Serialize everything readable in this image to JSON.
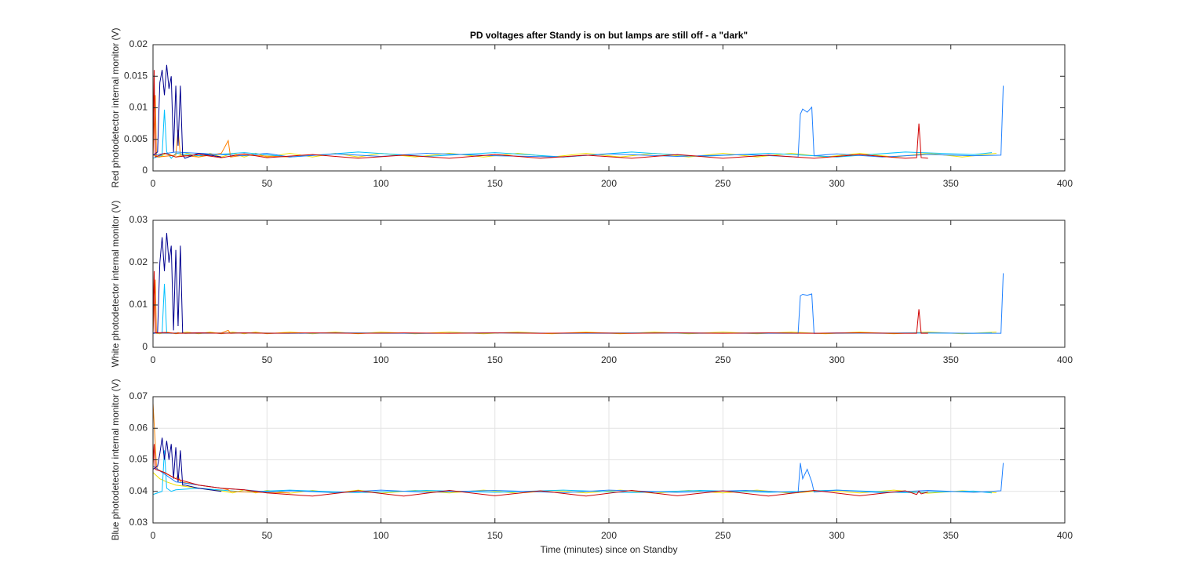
{
  "chart_data": [
    {
      "type": "line",
      "title": "PD voltages after Standy is on but lamps are still off - a \"dark\"",
      "y_label": "Red photodetector internal monitor (V)",
      "xlim": [
        0,
        400
      ],
      "xticks": [
        0,
        50,
        100,
        150,
        200,
        250,
        300,
        350,
        400
      ],
      "ylim": [
        0,
        0.02
      ],
      "yticks": [
        0,
        0.005,
        0.01,
        0.015,
        0.02
      ],
      "grid": false,
      "series": [
        {
          "color": "#f0e000",
          "x": [
            0,
            3,
            6,
            10,
            15,
            20,
            25,
            30,
            35,
            40,
            45,
            50,
            60,
            70,
            80,
            90,
            100,
            115,
            130,
            145,
            160,
            175,
            190,
            205,
            220,
            235,
            250,
            265,
            280,
            295,
            310,
            325,
            340,
            355,
            370
          ],
          "values": [
            0.0025,
            0.0022,
            0.0028,
            0.0022,
            0.0028,
            0.0022,
            0.0028,
            0.0022,
            0.0028,
            0.0022,
            0.0028,
            0.0022,
            0.0028,
            0.0022,
            0.0028,
            0.0022,
            0.0028,
            0.0022,
            0.0028,
            0.0022,
            0.0028,
            0.0022,
            0.0028,
            0.0022,
            0.0028,
            0.0022,
            0.0028,
            0.0022,
            0.0028,
            0.0022,
            0.0028,
            0.0022,
            0.0028,
            0.0022,
            0.0028
          ]
        },
        {
          "color": "#00c0ff",
          "x": [
            0,
            4,
            5,
            6,
            8,
            10,
            20,
            40,
            60,
            90,
            120,
            150,
            180,
            210,
            240,
            270,
            300,
            330,
            360,
            368
          ],
          "values": [
            0.002,
            0.0025,
            0.0097,
            0.003,
            0.002,
            0.0028,
            0.0024,
            0.0029,
            0.0022,
            0.003,
            0.0023,
            0.0029,
            0.0022,
            0.003,
            0.0023,
            0.0028,
            0.0022,
            0.003,
            0.0026,
            0.0029
          ]
        },
        {
          "color": "#ff8000",
          "x": [
            0,
            1,
            1.5,
            2,
            10,
            11,
            12,
            20,
            30,
            33,
            34,
            40,
            60
          ],
          "values": [
            0.0025,
            0.012,
            0.0025,
            0.0022,
            0.0025,
            0.0065,
            0.0025,
            0.0022,
            0.0028,
            0.0048,
            0.0022,
            0.0025,
            0.0022
          ]
        },
        {
          "color": "#1e80ff",
          "x": [
            0,
            10,
            20,
            30,
            40,
            50,
            60,
            80,
            100,
            120,
            150,
            180,
            200,
            230,
            260,
            283,
            284,
            285,
            287,
            289,
            290,
            300,
            320,
            340,
            360,
            372,
            373
          ],
          "values": [
            0.0025,
            0.003,
            0.0028,
            0.0026,
            0.0024,
            0.0028,
            0.0022,
            0.0027,
            0.0023,
            0.0028,
            0.0024,
            0.0022,
            0.0027,
            0.0023,
            0.0026,
            0.0022,
            0.009,
            0.0098,
            0.0093,
            0.0101,
            0.0024,
            0.0027,
            0.0022,
            0.0026,
            0.0024,
            0.0025,
            0.0135
          ]
        },
        {
          "color": "#00008f",
          "x": [
            0,
            2,
            3,
            4,
            5,
            6,
            7,
            8,
            9,
            10,
            11,
            12,
            13,
            14,
            20,
            30
          ],
          "values": [
            0.0025,
            0.003,
            0.014,
            0.016,
            0.012,
            0.0168,
            0.013,
            0.015,
            0.003,
            0.0135,
            0.004,
            0.0135,
            0.0025,
            0.002,
            0.0028,
            0.0022
          ]
        },
        {
          "color": "#d00000",
          "x": [
            0,
            0.5,
            1,
            5,
            10,
            20,
            30,
            40,
            50,
            70,
            90,
            110,
            130,
            150,
            170,
            190,
            210,
            230,
            250,
            270,
            290,
            310,
            330,
            335,
            336,
            337,
            340
          ],
          "values": [
            0.002,
            0.016,
            0.0022,
            0.0028,
            0.0022,
            0.0026,
            0.0021,
            0.0027,
            0.0021,
            0.0026,
            0.002,
            0.0025,
            0.002,
            0.0026,
            0.002,
            0.0025,
            0.002,
            0.0026,
            0.002,
            0.0025,
            0.002,
            0.0026,
            0.002,
            0.0021,
            0.0075,
            0.0021,
            0.002
          ]
        }
      ]
    },
    {
      "type": "line",
      "y_label": "White photodetector internal monitor (V)",
      "xlim": [
        0,
        400
      ],
      "xticks": [
        0,
        50,
        100,
        150,
        200,
        250,
        300,
        350,
        400
      ],
      "ylim": [
        0,
        0.03
      ],
      "yticks": [
        0,
        0.01,
        0.02,
        0.03
      ],
      "grid": false,
      "series": [
        {
          "color": "#f0e000",
          "x": [
            0,
            3,
            6,
            10,
            15,
            20,
            25,
            30,
            35,
            40,
            45,
            50,
            60,
            70,
            80,
            90,
            100,
            115,
            130,
            145,
            160,
            175,
            190,
            205,
            220,
            235,
            250,
            265,
            280,
            295,
            310,
            325,
            340,
            355,
            370
          ],
          "values": [
            0.0034,
            0.0032,
            0.0036,
            0.0032,
            0.0036,
            0.0032,
            0.0036,
            0.0032,
            0.0036,
            0.0032,
            0.0036,
            0.0032,
            0.0036,
            0.0032,
            0.0036,
            0.0032,
            0.0036,
            0.0032,
            0.0036,
            0.0032,
            0.0036,
            0.0032,
            0.0036,
            0.0032,
            0.0036,
            0.0032,
            0.0036,
            0.0032,
            0.0036,
            0.0032,
            0.0036,
            0.0032,
            0.0036,
            0.0032,
            0.0036
          ]
        },
        {
          "color": "#00c0ff",
          "x": [
            0,
            4,
            5,
            6,
            8,
            10,
            20,
            40,
            60,
            90,
            120,
            150,
            180,
            210,
            240,
            270,
            300,
            330,
            360,
            368
          ],
          "values": [
            0.0033,
            0.0034,
            0.015,
            0.0034,
            0.0033,
            0.0034,
            0.0033,
            0.0034,
            0.0033,
            0.0034,
            0.0033,
            0.0034,
            0.0033,
            0.0034,
            0.0033,
            0.0034,
            0.0033,
            0.0034,
            0.0033,
            0.0034
          ]
        },
        {
          "color": "#ff8000",
          "x": [
            0,
            1,
            1.5,
            2,
            10,
            11,
            12,
            20,
            30,
            33,
            34,
            40,
            60
          ],
          "values": [
            0.0033,
            0.016,
            0.0033,
            0.0033,
            0.0033,
            0.0035,
            0.0033,
            0.0033,
            0.0034,
            0.004,
            0.0033,
            0.0034,
            0.0033
          ]
        },
        {
          "color": "#1e80ff",
          "x": [
            0,
            10,
            20,
            30,
            40,
            50,
            60,
            80,
            100,
            120,
            150,
            180,
            200,
            230,
            260,
            283,
            284,
            285,
            287,
            289,
            290,
            300,
            320,
            340,
            360,
            372,
            373
          ],
          "values": [
            0.0034,
            0.0033,
            0.0034,
            0.0033,
            0.0034,
            0.0033,
            0.0033,
            0.0034,
            0.0033,
            0.0033,
            0.0034,
            0.0033,
            0.0033,
            0.0034,
            0.0033,
            0.0033,
            0.0122,
            0.0125,
            0.0123,
            0.0126,
            0.0033,
            0.0034,
            0.0033,
            0.0034,
            0.0033,
            0.0033,
            0.0175
          ]
        },
        {
          "color": "#00008f",
          "x": [
            0,
            2,
            3,
            4,
            5,
            6,
            7,
            8,
            9,
            10,
            11,
            12,
            13,
            14,
            20,
            30
          ],
          "values": [
            0.0033,
            0.0035,
            0.02,
            0.026,
            0.018,
            0.027,
            0.02,
            0.024,
            0.004,
            0.023,
            0.005,
            0.024,
            0.0034,
            0.0033,
            0.0034,
            0.0033
          ]
        },
        {
          "color": "#d00000",
          "x": [
            0,
            0.5,
            1,
            5,
            10,
            20,
            30,
            40,
            50,
            70,
            90,
            110,
            130,
            150,
            170,
            190,
            210,
            230,
            250,
            270,
            290,
            310,
            330,
            335,
            336,
            337,
            340
          ],
          "values": [
            0.0033,
            0.018,
            0.0034,
            0.0035,
            0.0033,
            0.0034,
            0.0033,
            0.0034,
            0.0033,
            0.0034,
            0.0033,
            0.0034,
            0.0033,
            0.0034,
            0.0033,
            0.0034,
            0.0033,
            0.0034,
            0.0033,
            0.0034,
            0.0033,
            0.0034,
            0.0033,
            0.0033,
            0.009,
            0.0033,
            0.0033
          ]
        }
      ]
    },
    {
      "type": "line",
      "y_label": "Blue photodetector internal monitor (V)",
      "x_label": "Time (minutes) since on Standby",
      "xlim": [
        0,
        400
      ],
      "xticks": [
        0,
        50,
        100,
        150,
        200,
        250,
        300,
        350,
        400
      ],
      "ylim": [
        0.03,
        0.07
      ],
      "yticks": [
        0.03,
        0.04,
        0.05,
        0.06,
        0.07
      ],
      "grid": true,
      "series": [
        {
          "color": "#f0e000",
          "x": [
            0,
            3,
            6,
            10,
            15,
            20,
            25,
            30,
            35,
            40,
            45,
            50,
            60,
            70,
            80,
            90,
            100,
            115,
            130,
            145,
            160,
            175,
            190,
            205,
            220,
            235,
            250,
            265,
            280,
            295,
            310,
            325,
            340,
            355,
            370
          ],
          "values": [
            0.046,
            0.044,
            0.043,
            0.042,
            0.0415,
            0.041,
            0.0405,
            0.0402,
            0.0395,
            0.0405,
            0.0395,
            0.0403,
            0.0394,
            0.0403,
            0.0394,
            0.0404,
            0.0394,
            0.0403,
            0.0395,
            0.0404,
            0.0394,
            0.0403,
            0.0395,
            0.0404,
            0.0394,
            0.0403,
            0.0395,
            0.0404,
            0.0394,
            0.0403,
            0.0395,
            0.0404,
            0.0394,
            0.0402,
            0.0396
          ]
        },
        {
          "color": "#00c0ff",
          "x": [
            0,
            4,
            5,
            6,
            8,
            10,
            20,
            40,
            60,
            90,
            120,
            150,
            180,
            210,
            240,
            270,
            300,
            330,
            360,
            368
          ],
          "values": [
            0.039,
            0.04,
            0.053,
            0.041,
            0.04,
            0.0405,
            0.041,
            0.0398,
            0.0404,
            0.0396,
            0.0403,
            0.0397,
            0.0404,
            0.0396,
            0.0403,
            0.0397,
            0.0404,
            0.0396,
            0.0401,
            0.0395
          ]
        },
        {
          "color": "#ff8000",
          "x": [
            0,
            1,
            1.5,
            2,
            10,
            11,
            12,
            20,
            30,
            33,
            34,
            40,
            60
          ],
          "values": [
            0.068,
            0.055,
            0.048,
            0.047,
            0.044,
            0.045,
            0.043,
            0.042,
            0.041,
            0.0405,
            0.04,
            0.0398,
            0.0395
          ]
        },
        {
          "color": "#1e80ff",
          "x": [
            0,
            10,
            20,
            30,
            40,
            50,
            60,
            80,
            100,
            120,
            150,
            180,
            200,
            230,
            260,
            283,
            284,
            285,
            287,
            289,
            290,
            300,
            320,
            340,
            360,
            372,
            373
          ],
          "values": [
            0.048,
            0.043,
            0.042,
            0.041,
            0.0405,
            0.0398,
            0.0402,
            0.0396,
            0.0404,
            0.0397,
            0.0403,
            0.0396,
            0.0404,
            0.0397,
            0.0403,
            0.0396,
            0.049,
            0.044,
            0.047,
            0.043,
            0.0398,
            0.0404,
            0.0396,
            0.0403,
            0.0397,
            0.0402,
            0.049
          ]
        },
        {
          "color": "#00008f",
          "x": [
            0,
            2,
            3,
            4,
            5,
            6,
            7,
            8,
            9,
            10,
            11,
            12,
            13,
            14,
            20,
            30
          ],
          "values": [
            0.047,
            0.048,
            0.052,
            0.057,
            0.05,
            0.056,
            0.05,
            0.055,
            0.044,
            0.054,
            0.043,
            0.053,
            0.042,
            0.042,
            0.041,
            0.04
          ]
        },
        {
          "color": "#d00000",
          "x": [
            0,
            0.5,
            1,
            5,
            10,
            20,
            30,
            40,
            50,
            70,
            90,
            110,
            130,
            150,
            170,
            190,
            210,
            230,
            250,
            270,
            290,
            310,
            330,
            335,
            336,
            337,
            340
          ],
          "values": [
            0.048,
            0.055,
            0.047,
            0.046,
            0.044,
            0.042,
            0.041,
            0.0405,
            0.0395,
            0.0385,
            0.0402,
            0.0385,
            0.0403,
            0.0386,
            0.0402,
            0.0385,
            0.0403,
            0.0386,
            0.0402,
            0.0385,
            0.0403,
            0.0386,
            0.0402,
            0.039,
            0.0401,
            0.0392,
            0.0398
          ]
        }
      ]
    }
  ]
}
